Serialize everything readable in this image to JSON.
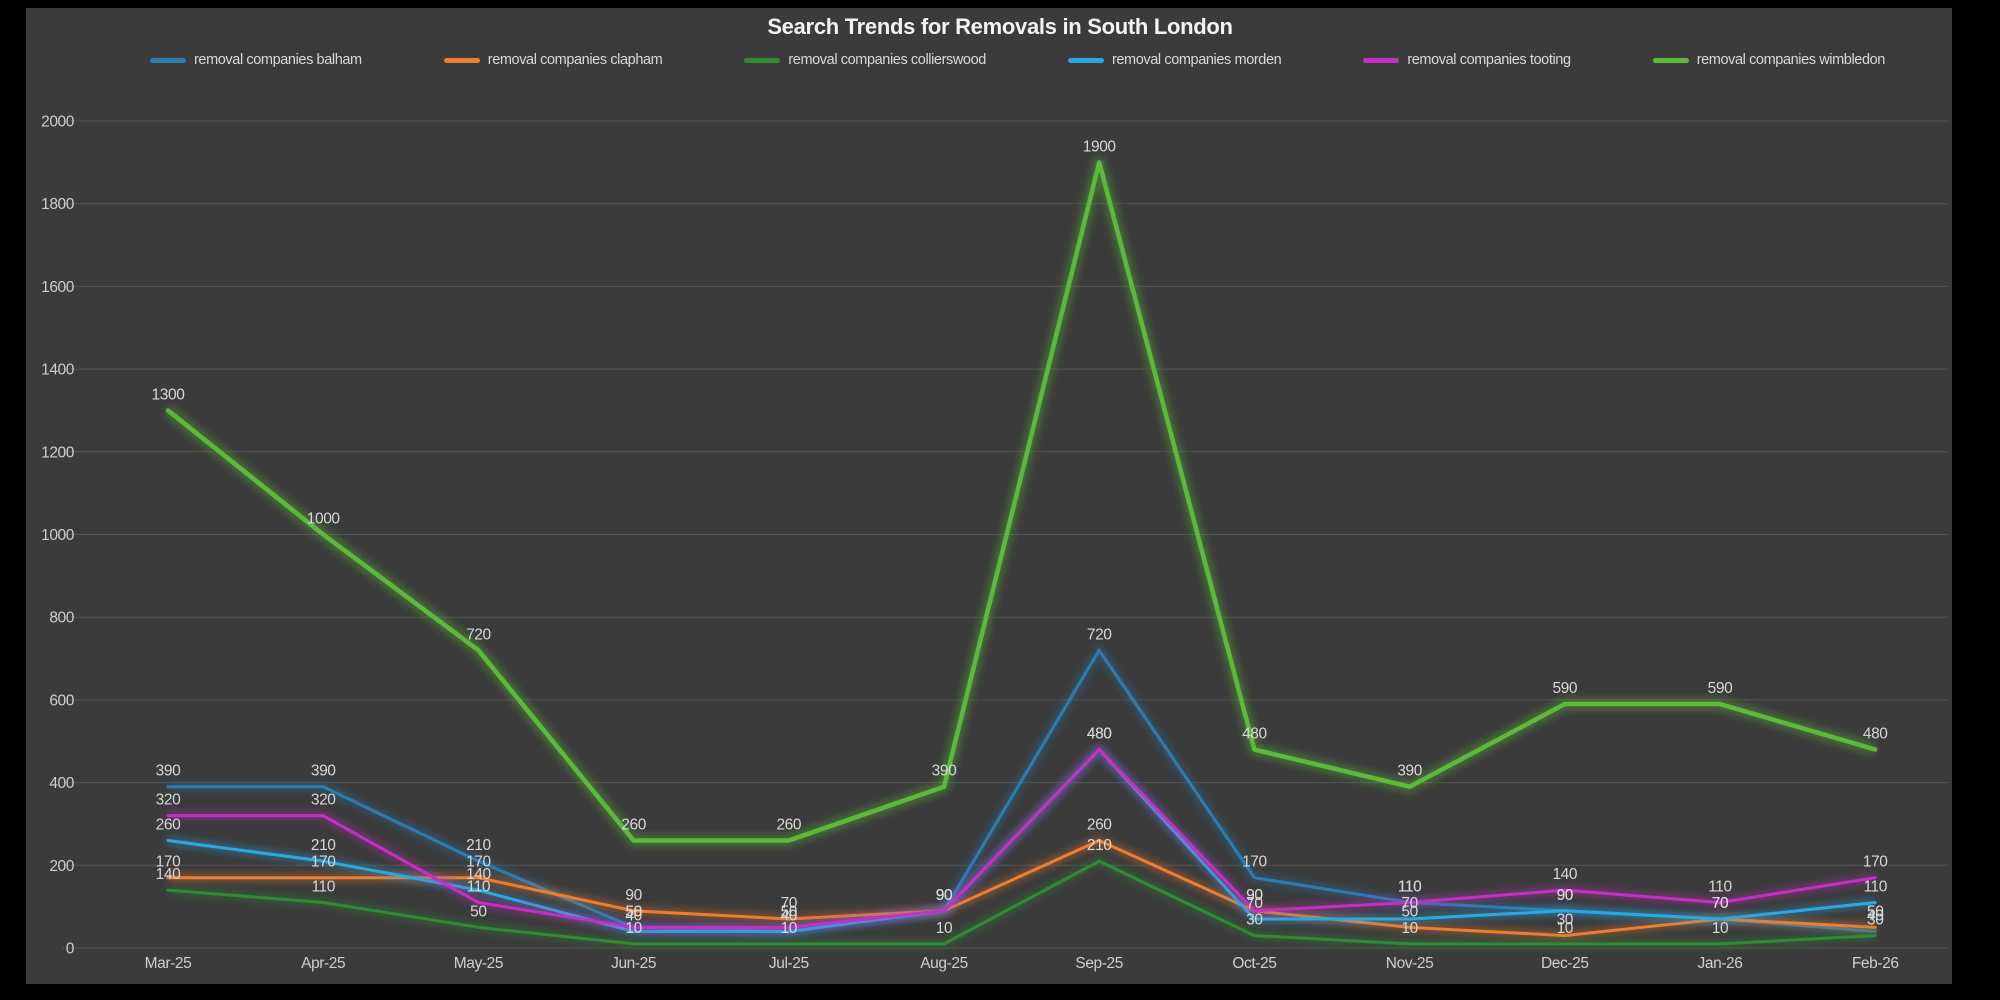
{
  "title": "Search Trends for Removals in South London",
  "panel": {
    "page_background": "#000000",
    "panel_background": "#3B3B3B",
    "grid_color": "#545454",
    "axis_text_color": "#CFCFCF",
    "data_label_color": "#D8D8D8",
    "title_color": "#F3F3F3"
  },
  "chart_data": {
    "type": "line",
    "title": "Search Trends for Removals in South London",
    "xlabel": "",
    "ylabel": "",
    "ylim": [
      0,
      2000
    ],
    "ytick_step": 200,
    "ytick_labels": [
      "0",
      "200",
      "400",
      "600",
      "800",
      "1000",
      "1200",
      "1400",
      "1600",
      "1800",
      "2000"
    ],
    "grid": "horizontal",
    "legend_position": "top",
    "data_labels_shown": true,
    "categories": [
      "Mar-25",
      "Apr-25",
      "May-25",
      "Jun-25",
      "Jul-25",
      "Aug-25",
      "Sep-25",
      "Oct-25",
      "Nov-25",
      "Dec-25",
      "Jan-26",
      "Feb-26"
    ],
    "series": [
      {
        "name": "removal companies balham",
        "color": "#2B7CB3",
        "line_width": 3,
        "values": [
          390,
          390,
          210,
          50,
          40,
          90,
          720,
          170,
          110,
          90,
          70,
          40
        ]
      },
      {
        "name": "removal companies clapham",
        "color": "#EE7D2F",
        "line_width": 3,
        "values": [
          170,
          170,
          170,
          90,
          70,
          90,
          260,
          90,
          50,
          30,
          70,
          50
        ]
      },
      {
        "name": "removal companies collierswood",
        "color": "#2F8C32",
        "line_width": 3,
        "values": [
          140,
          110,
          50,
          10,
          10,
          10,
          210,
          30,
          10,
          10,
          10,
          30
        ]
      },
      {
        "name": "removal companies morden",
        "color": "#2AA9E0",
        "line_width": 3,
        "values": [
          260,
          210,
          140,
          40,
          40,
          90,
          480,
          70,
          70,
          90,
          70,
          110
        ]
      },
      {
        "name": "removal companies tooting",
        "color": "#C42FC4",
        "line_width": 3,
        "values": [
          320,
          320,
          110,
          50,
          50,
          90,
          480,
          90,
          110,
          140,
          110,
          170
        ]
      },
      {
        "name": "removal companies wimbledon",
        "color": "#5BBA39",
        "line_width": 4.5,
        "values": [
          1300,
          1000,
          720,
          260,
          260,
          390,
          1900,
          480,
          390,
          590,
          590,
          480
        ]
      }
    ]
  }
}
